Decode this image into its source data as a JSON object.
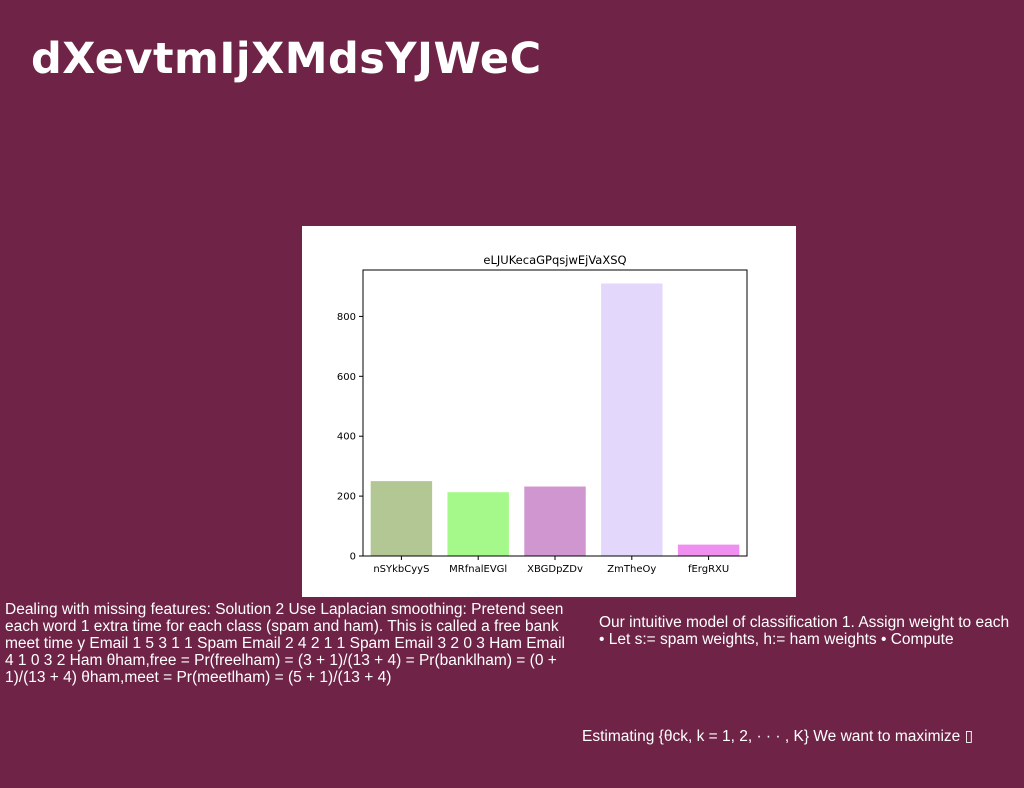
{
  "slide": {
    "title": "dXevtmIjXMdsYJWeC",
    "left_text": "Dealing with missing features: Solution 2 Use Laplacian smoothing: Pretend seen each word 1 extra time for each class (spam and ham). This is called a free bank meet time y Email 1 5 3 1 1 Spam Email 2 4 2 1 1 Spam Email 3 2 0 3 Ham Email 4 1 0 3 2 Ham θham,free = Pr(freelham) = (3 + 1)/(13 + 4) = Pr(banklham) = (0 + 1)/(13 + 4) θham,meet = Pr(meetlham) = (5 + 1)/(13 + 4)",
    "right_line1": "Our intuitive model of classification 1. Assign weight to each",
    "right_line2": "• Let s:= spam weights, h:= ham weights • Compute",
    "bottom_text": "Estimating {θck, k = 1, 2, · · · , K} We want to maximize ▯"
  },
  "colors": {
    "background": "#6f2447",
    "text": "#ffffff"
  },
  "chart_data": {
    "type": "bar",
    "title": "eLJUKecaGPqsjwEjVaXSQ",
    "xlabel": "",
    "ylabel": "",
    "categories": [
      "nSYkbCyyS",
      "MRfnalEVGl",
      "XBGDpZDv",
      "ZmTheOy",
      "fErgRXU"
    ],
    "values": [
      250,
      213,
      232,
      910,
      38
    ],
    "colors": [
      "#b2c794",
      "#a4f98a",
      "#cf96cf",
      "#e3d8fc",
      "#ef90f0"
    ],
    "ylim": [
      0,
      955
    ],
    "yticks": [
      0,
      200,
      400,
      600,
      800
    ],
    "grid": false,
    "legend": "none"
  }
}
